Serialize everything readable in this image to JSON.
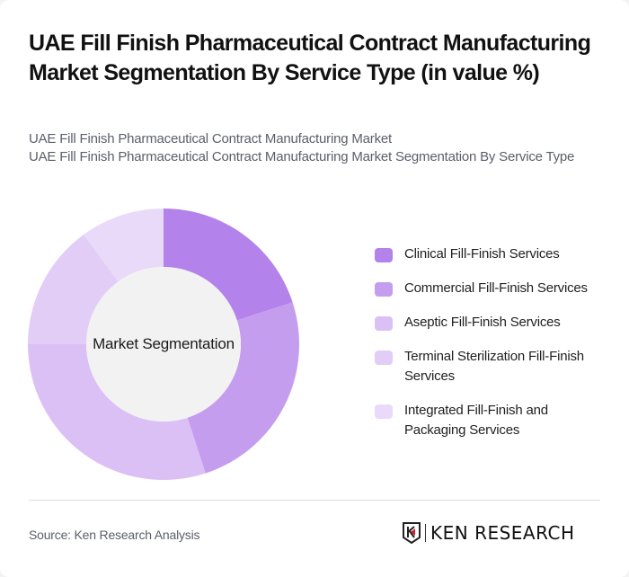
{
  "title": "UAE Fill Finish Pharmaceutical Contract Manufacturing Market Segmentation By Service Type (in value %)",
  "subtitle_lines": [
    "UAE Fill Finish Pharmaceutical Contract Manufacturing Market",
    "UAE Fill Finish Pharmaceutical Contract Manufacturing Market Segmentation By Service Type"
  ],
  "center_label": "Market Segmentation",
  "legend": [
    {
      "label": "Clinical Fill-Finish Services",
      "color": "#b382ea"
    },
    {
      "label": "Commercial Fill-Finish Services",
      "color": "#c59dee"
    },
    {
      "label": "Aseptic Fill-Finish Services",
      "color": "#dbc0f6"
    },
    {
      "label": "Terminal Sterilization Fill-Finish Services",
      "color": "#e2cdf7"
    },
    {
      "label": "Integrated Fill-Finish and Packaging Services",
      "color": "#e9dafa"
    }
  ],
  "footer": {
    "source": "Source: Ken Research Analysis",
    "logo_text": "KEN RESEARCH"
  },
  "chart_data": {
    "type": "pie",
    "variant": "donut",
    "title": "UAE Fill Finish Pharmaceutical Contract Manufacturing Market Segmentation By Service Type (in value %)",
    "center_label": "Market Segmentation",
    "categories": [
      "Clinical Fill-Finish Services",
      "Commercial Fill-Finish Services",
      "Aseptic Fill-Finish Services",
      "Terminal Sterilization Fill-Finish Services",
      "Integrated Fill-Finish and Packaging Services"
    ],
    "values": [
      20,
      25,
      30,
      15,
      10
    ],
    "colors": [
      "#b382ea",
      "#c59dee",
      "#dbc0f6",
      "#e2cdf7",
      "#e9dafa"
    ],
    "legend_position": "right",
    "unit": "%"
  }
}
